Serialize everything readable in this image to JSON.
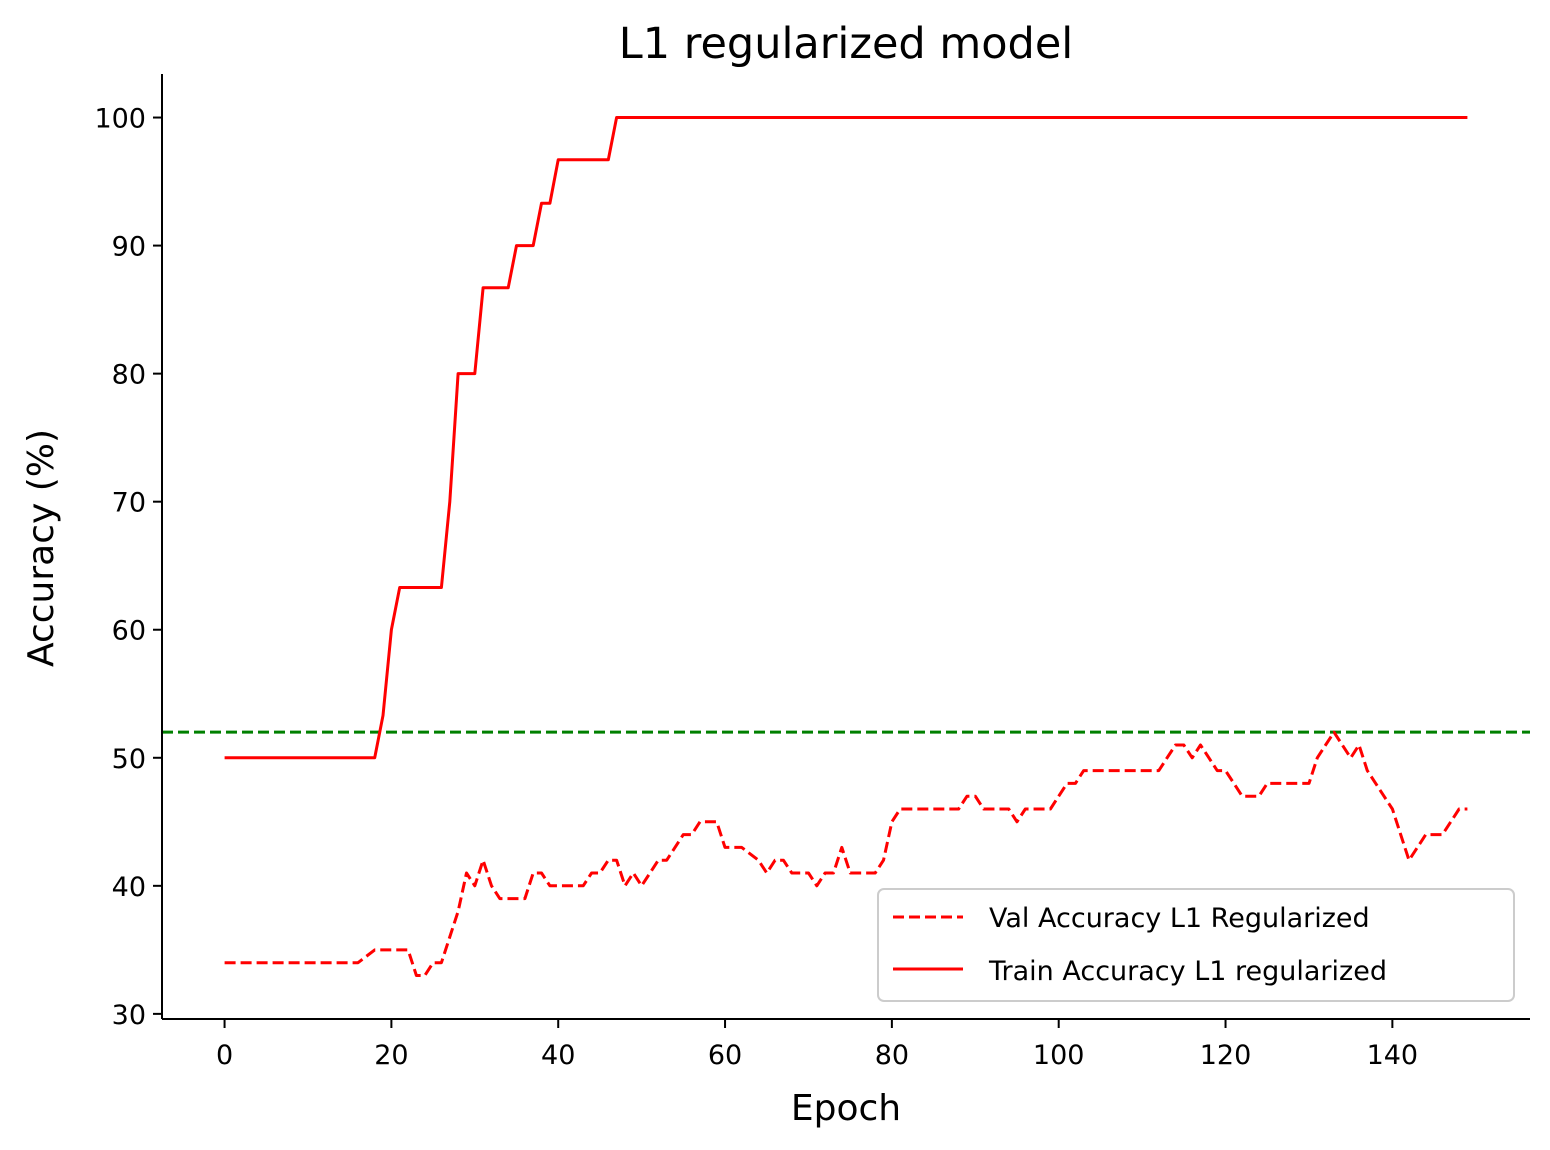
{
  "chart_data": {
    "type": "line",
    "title": "L1 regularized model",
    "xlabel": "Epoch",
    "ylabel": "Accuracy (%)",
    "xlim": [
      -7.5,
      156.5
    ],
    "ylim": [
      29.6,
      103.4
    ],
    "xticks": [
      0,
      20,
      40,
      60,
      80,
      100,
      120,
      140
    ],
    "yticks": [
      30,
      40,
      50,
      60,
      70,
      80,
      90,
      100
    ],
    "grid": false,
    "legend_position": "lower-right",
    "series": [
      {
        "name": "Val Accuracy L1 Regularized",
        "color": "#ff0000",
        "style": "dashed",
        "points": [
          [
            0,
            34
          ],
          [
            16,
            34
          ],
          [
            18,
            35
          ],
          [
            22,
            35
          ],
          [
            23,
            33
          ],
          [
            24,
            33
          ],
          [
            25,
            34
          ],
          [
            26,
            34
          ],
          [
            28,
            38
          ],
          [
            29,
            41
          ],
          [
            30,
            40
          ],
          [
            31,
            42
          ],
          [
            32,
            40
          ],
          [
            33,
            39
          ],
          [
            36,
            39
          ],
          [
            37,
            41
          ],
          [
            38,
            41
          ],
          [
            39,
            40
          ],
          [
            43,
            40
          ],
          [
            44,
            41
          ],
          [
            45,
            41
          ],
          [
            46,
            42
          ],
          [
            47,
            42
          ],
          [
            48,
            40
          ],
          [
            49,
            41
          ],
          [
            50,
            40
          ],
          [
            51,
            41
          ],
          [
            52,
            42
          ],
          [
            53,
            42
          ],
          [
            54,
            43
          ],
          [
            55,
            44
          ],
          [
            56,
            44
          ],
          [
            57,
            45
          ],
          [
            59,
            45
          ],
          [
            60,
            43
          ],
          [
            62,
            43
          ],
          [
            64,
            42
          ],
          [
            65,
            41
          ],
          [
            66,
            42
          ],
          [
            67,
            42
          ],
          [
            68,
            41
          ],
          [
            70,
            41
          ],
          [
            71,
            40
          ],
          [
            72,
            41
          ],
          [
            73,
            41
          ],
          [
            74,
            43
          ],
          [
            75,
            41
          ],
          [
            78,
            41
          ],
          [
            79,
            42
          ],
          [
            80,
            45
          ],
          [
            81,
            46
          ],
          [
            88,
            46
          ],
          [
            89,
            47
          ],
          [
            90,
            47
          ],
          [
            91,
            46
          ],
          [
            94,
            46
          ],
          [
            95,
            45
          ],
          [
            96,
            46
          ],
          [
            99,
            46
          ],
          [
            100,
            47
          ],
          [
            101,
            48
          ],
          [
            102,
            48
          ],
          [
            103,
            49
          ],
          [
            112,
            49
          ],
          [
            113,
            50
          ],
          [
            114,
            51
          ],
          [
            115,
            51
          ],
          [
            116,
            50
          ],
          [
            117,
            51
          ],
          [
            118,
            50
          ],
          [
            119,
            49
          ],
          [
            120,
            49
          ],
          [
            121,
            48
          ],
          [
            122,
            47
          ],
          [
            124,
            47
          ],
          [
            125,
            48
          ],
          [
            130,
            48
          ],
          [
            131,
            50
          ],
          [
            132,
            51
          ],
          [
            133,
            52
          ],
          [
            134,
            51
          ],
          [
            135,
            50
          ],
          [
            136,
            51
          ],
          [
            137,
            49
          ],
          [
            138,
            48
          ],
          [
            139,
            47
          ],
          [
            140,
            46
          ],
          [
            141,
            44
          ],
          [
            142,
            42
          ],
          [
            143,
            43
          ],
          [
            144,
            44
          ],
          [
            146,
            44
          ],
          [
            147,
            45
          ],
          [
            148,
            46
          ],
          [
            149,
            46
          ]
        ]
      },
      {
        "name": "Train Accuracy L1 regularized",
        "color": "#ff0000",
        "style": "solid",
        "points": [
          [
            0,
            50
          ],
          [
            18,
            50
          ],
          [
            19,
            53.3
          ],
          [
            20,
            60
          ],
          [
            21,
            63.3
          ],
          [
            26,
            63.3
          ],
          [
            27,
            70
          ],
          [
            28,
            80
          ],
          [
            30,
            80
          ],
          [
            31,
            86.7
          ],
          [
            34,
            86.7
          ],
          [
            35,
            90
          ],
          [
            37,
            90
          ],
          [
            38,
            93.3
          ],
          [
            39,
            93.3
          ],
          [
            40,
            96.7
          ],
          [
            46,
            96.7
          ],
          [
            47,
            100
          ],
          [
            149,
            100
          ]
        ]
      }
    ],
    "reference_line": {
      "y": 52,
      "color": "#008000",
      "style": "dashed"
    }
  }
}
